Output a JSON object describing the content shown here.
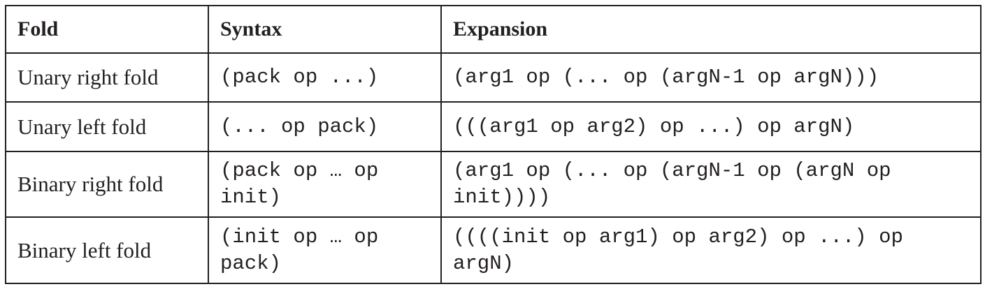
{
  "table": {
    "headers": [
      "Fold",
      "Syntax",
      "Expansion"
    ],
    "rows": [
      {
        "fold": "Unary right fold",
        "syntax": "(pack op ...)",
        "expansion": "(arg1 op (... op (argN-1 op argN)))"
      },
      {
        "fold": "Unary left fold",
        "syntax": "(... op pack)",
        "expansion": "(((arg1 op arg2) op ...) op argN)"
      },
      {
        "fold": "Binary right fold",
        "syntax": "(pack op … op init)",
        "expansion": "(arg1 op (... op (argN-1 op (argN op init))))"
      },
      {
        "fold": "Binary left fold",
        "syntax": "(init op … op pack)",
        "expansion": "((((init op arg1) op arg2) op ...) op argN)"
      }
    ]
  }
}
